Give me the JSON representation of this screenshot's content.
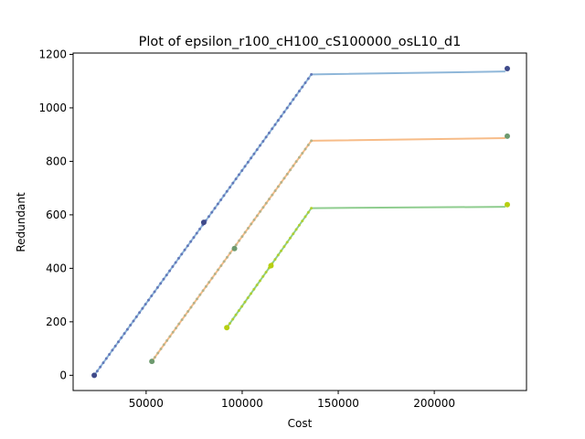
{
  "chart_data": {
    "type": "line",
    "title": "Plot of epsilon_r100_cH100_cS100000_osL10_d1",
    "xlabel": "Cost",
    "ylabel": "Redundant",
    "xlim": [
      12000,
      248000
    ],
    "ylim": [
      -57,
      1205
    ],
    "x_ticks": [
      50000,
      100000,
      150000,
      200000
    ],
    "x_tick_labels": [
      "50000",
      "100000",
      "150000",
      "200000"
    ],
    "y_ticks": [
      0,
      200,
      400,
      600,
      800,
      1000,
      1200
    ],
    "y_tick_labels": [
      "0",
      "200",
      "400",
      "600",
      "800",
      "1000",
      "1200"
    ],
    "grid": false,
    "legend": "none",
    "series": [
      {
        "color": "#8fb7d9",
        "marker_color": "#5b6fb4",
        "x": [
          23000,
          136000,
          237000
        ],
        "y": [
          0,
          1125,
          1136
        ],
        "highlight_points": [
          [
            23000,
            0
          ],
          [
            80000,
            572
          ],
          [
            238000,
            1147
          ]
        ],
        "highlight_color": "#3f4a8a"
      },
      {
        "color": "#f7bc88",
        "marker_color": "#aab08a",
        "x": [
          53000,
          136000,
          237000
        ],
        "y": [
          52,
          877,
          887
        ],
        "highlight_points": [
          [
            53000,
            52
          ],
          [
            96000,
            474
          ],
          [
            238000,
            894
          ]
        ],
        "highlight_color": "#6d9a6e"
      },
      {
        "color": "#8fcd8f",
        "marker_color": "#b3d020",
        "x": [
          92000,
          136000,
          237000
        ],
        "y": [
          178,
          625,
          630
        ],
        "highlight_points": [
          [
            92000,
            178
          ],
          [
            115000,
            410
          ],
          [
            238000,
            638
          ]
        ],
        "highlight_color": "#b7cf10"
      }
    ]
  }
}
